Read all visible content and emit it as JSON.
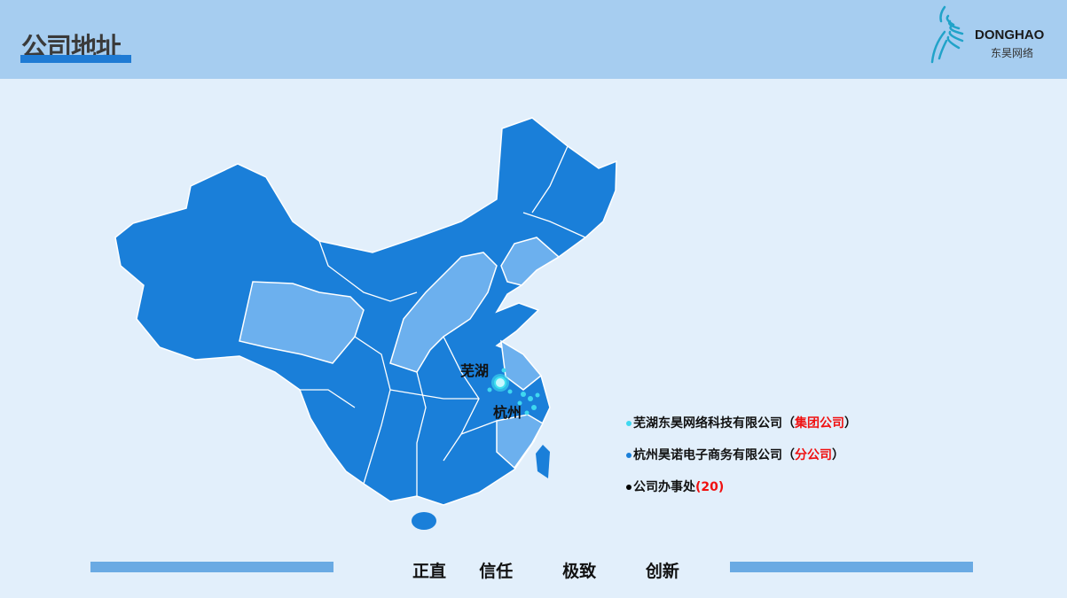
{
  "header": {
    "title": "公司地址",
    "logo": {
      "en": "DONGHAO",
      "cn": "东昊网络"
    }
  },
  "map": {
    "cities": [
      {
        "label": "芜湖"
      },
      {
        "label": "杭州"
      }
    ],
    "colors": {
      "region": "#1a7fd9",
      "highlight": "#6cb0ee",
      "marker": "#3fe0f0"
    }
  },
  "legend": [
    {
      "name": "芜湖东昊网络科技有限公司",
      "open": "（",
      "tag": "集团公司",
      "close": "）",
      "dot_color": "#3fd8f0"
    },
    {
      "name": "杭州昊诺电子商务有限公司",
      "open": "（",
      "tag": "分公司",
      "close": "）",
      "dot_color": "#1a7fd9"
    },
    {
      "name": "公司办事处",
      "open": "(",
      "tag": "20",
      "close": ")",
      "dot_color": "#000000"
    }
  ],
  "footer": {
    "motto": "正直  信任   极致   创新"
  }
}
